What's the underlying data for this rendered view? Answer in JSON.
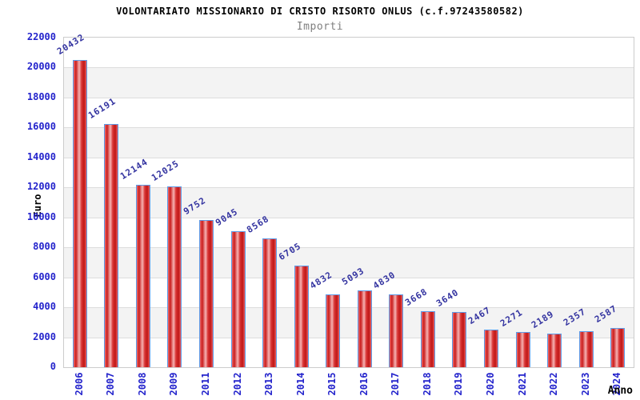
{
  "header": {
    "title": "VOLONTARIATO MISSIONARIO DI CRISTO RISORTO ONLUS (c.f.97243580582)",
    "subtitle": "Importi"
  },
  "chart_data": {
    "type": "bar",
    "title": "VOLONTARIATO MISSIONARIO DI CRISTO RISORTO ONLUS (c.f.97243580582)",
    "subtitle": "Importi",
    "xlabel": "Anno",
    "ylabel": "Euro",
    "categories": [
      "2006",
      "2007",
      "2008",
      "2009",
      "2011",
      "2012",
      "2013",
      "2014",
      "2015",
      "2016",
      "2017",
      "2018",
      "2019",
      "2020",
      "2021",
      "2022",
      "2023",
      "2024"
    ],
    "values": [
      20432,
      16191,
      12144,
      12025,
      9752,
      9045,
      8568,
      6705,
      4832,
      5093,
      4830,
      3668,
      3640,
      2467,
      2271,
      2189,
      2357,
      2587
    ],
    "ylim": [
      0,
      22000
    ],
    "ytick_step": 2000,
    "y_ticks": [
      0,
      2000,
      4000,
      6000,
      8000,
      10000,
      12000,
      14000,
      16000,
      18000,
      20000,
      22000
    ],
    "grid": true,
    "legend": "none",
    "colors": {
      "bar_fill": "#d42525",
      "bar_fill_light": "#f6b3b3",
      "bar_border": "#5e9ce8",
      "axis_tick_text": "#2323cc",
      "value_label_text": "#3333a0",
      "band_gray": "#f3f3f3",
      "gridline": "#dddddd",
      "frame_border": "#cccccc",
      "title_text": "#000000",
      "subtitle_text": "#7f7f7f"
    }
  }
}
